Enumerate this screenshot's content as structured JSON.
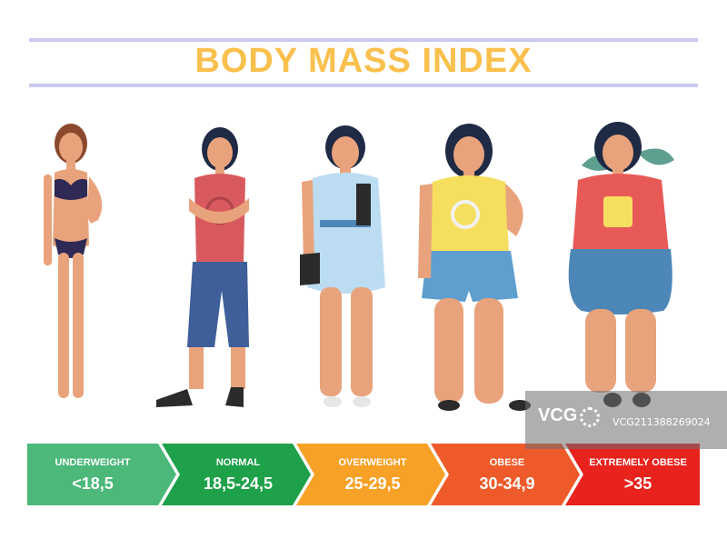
{
  "header": {
    "title": "BODY MASS INDEX"
  },
  "categories": [
    {
      "label": "UNDERWEIGHT",
      "range": "<18,5",
      "color": "#4cb87a"
    },
    {
      "label": "NORMAL",
      "range": "18,5-24,5",
      "color": "#1fa14a"
    },
    {
      "label": "OVERWEIGHT",
      "range": "25-29,5",
      "color": "#f7a126"
    },
    {
      "label": "OBESE",
      "range": "30-34,9",
      "color": "#ef5a2a"
    },
    {
      "label": "EXTREMELY OBESE",
      "range": ">35",
      "color": "#e8221d"
    }
  ],
  "figures": [
    {
      "name": "underweight-woman",
      "top": "#2e2a55",
      "bottom": "#2e2a55"
    },
    {
      "name": "normal-woman",
      "top": "#d85a5e",
      "bottom": "#3e5f99"
    },
    {
      "name": "overweight-woman",
      "top": "#bcdcf2",
      "bottom": "#bcdcf2"
    },
    {
      "name": "obese-woman",
      "top": "#f6de5e",
      "bottom": "#5f9fcf"
    },
    {
      "name": "extremely-obese-woman",
      "top": "#e85a58",
      "bottom": "#4d87b7"
    }
  ],
  "watermark": {
    "logo": "VCG",
    "id": "VCG211388269024"
  }
}
